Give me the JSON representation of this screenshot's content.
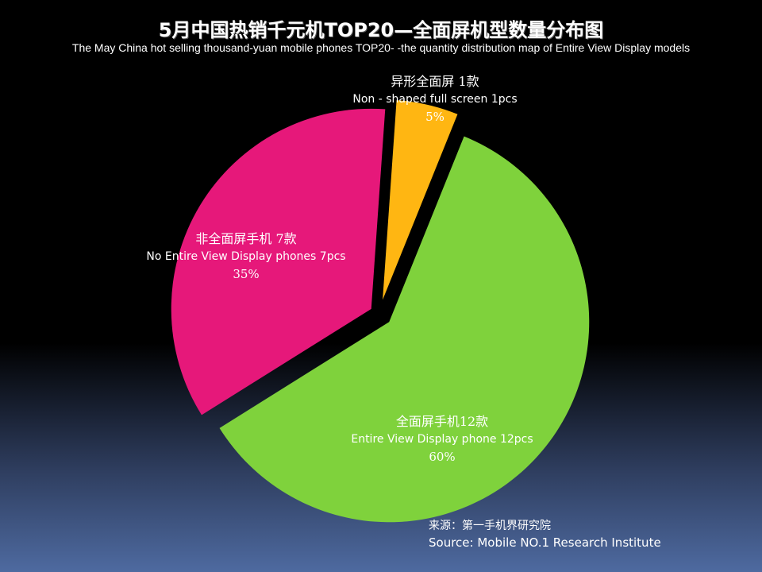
{
  "title": "5月中国热销千元机TOP20—全面屏机型数量分布图",
  "subtitle": "The May China hot selling thousand-yuan mobile phones TOP20- -the quantity distribution map of Entire View Display models",
  "chart_data": {
    "type": "pie",
    "slices": [
      {
        "label_zh": "全面屏手机12款",
        "label_en": "Entire View Display phone 12pcs",
        "value": 12,
        "percent": 60,
        "percent_label": "60%",
        "color": "#7fd23c"
      },
      {
        "label_zh": "非全面屏手机 7款",
        "label_en": "No Entire View Display phones  7pcs",
        "value": 7,
        "percent": 35,
        "percent_label": "35%",
        "color": "#e6187a"
      },
      {
        "label_zh": "异形全面屏  1款",
        "label_en": "Non - shaped full screen   1pcs",
        "value": 1,
        "percent": 5,
        "percent_label": "5%",
        "color": "#ffb612"
      }
    ]
  },
  "source": {
    "zh": "来源：第一手机界研究院",
    "en": "Source: Mobile NO.1 Research Institute"
  }
}
